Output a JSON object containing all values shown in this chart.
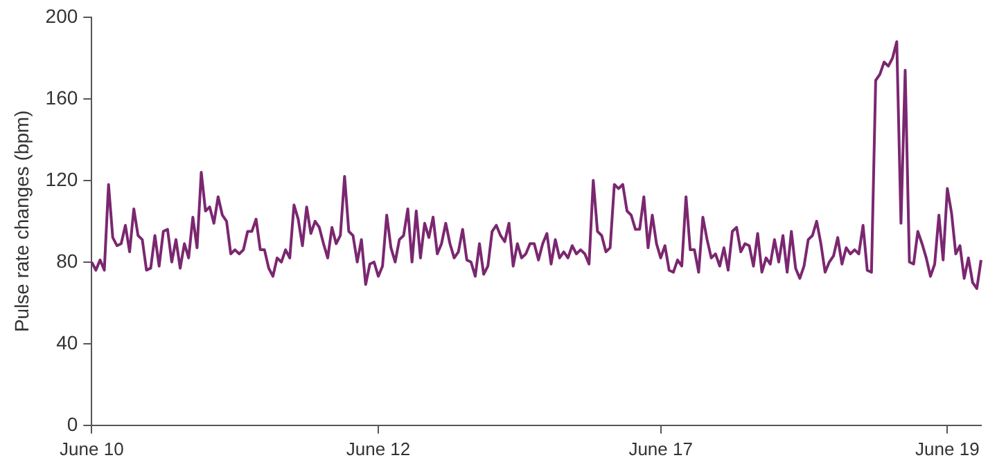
{
  "chart_data": {
    "type": "line",
    "ylabel": "Pulse rate changes (bpm)",
    "grid": false,
    "legend": false,
    "marker": "none",
    "line_style": "solid",
    "categories": [
      "June 10",
      null,
      null,
      null,
      null,
      null,
      null,
      null,
      null,
      null,
      null,
      null,
      null,
      null,
      null,
      null,
      null,
      null,
      null,
      null,
      null,
      null,
      null,
      null,
      null,
      null,
      null,
      null,
      null,
      null,
      null,
      null,
      null,
      null,
      null,
      null,
      null,
      null,
      null,
      null,
      null,
      null,
      null,
      null,
      null,
      null,
      null,
      null,
      null,
      null,
      null,
      null,
      null,
      null,
      null,
      null,
      null,
      null,
      null,
      null,
      null,
      null,
      null,
      null,
      null,
      null,
      null,
      null,
      "June 12",
      null,
      null,
      null,
      null,
      null,
      null,
      null,
      null,
      null,
      null,
      null,
      null,
      null,
      null,
      null,
      null,
      null,
      null,
      null,
      null,
      null,
      null,
      null,
      null,
      null,
      null,
      null,
      null,
      null,
      null,
      null,
      null,
      null,
      null,
      null,
      null,
      null,
      null,
      null,
      null,
      null,
      null,
      null,
      null,
      null,
      null,
      null,
      null,
      null,
      null,
      null,
      null,
      null,
      null,
      null,
      null,
      null,
      null,
      null,
      null,
      null,
      null,
      null,
      null,
      null,
      null,
      "June 17",
      null,
      null,
      null,
      null,
      null,
      null,
      null,
      null,
      null,
      null,
      null,
      null,
      null,
      null,
      null,
      null,
      null,
      null,
      null,
      null,
      null,
      null,
      null,
      null,
      null,
      null,
      null,
      null,
      null,
      null,
      null,
      null,
      null,
      null,
      null,
      null,
      null,
      null,
      null,
      null,
      null,
      null,
      null,
      null,
      null,
      null,
      null,
      null,
      null,
      null,
      null,
      null,
      null,
      null,
      null,
      null,
      null,
      null,
      null,
      null,
      null,
      null,
      null,
      null,
      null,
      null,
      null,
      "June 19",
      null,
      null,
      null,
      null,
      null,
      null,
      null,
      null
    ],
    "ylim": [
      0,
      200
    ],
    "yticks": [
      0,
      40,
      80,
      120,
      160,
      200
    ],
    "series": [
      {
        "color": "#7b2770",
        "values": [
          80,
          76,
          81,
          76,
          118,
          92,
          88,
          89,
          98,
          85,
          106,
          93,
          91,
          76,
          77,
          93,
          78,
          95,
          96,
          80,
          91,
          77,
          89,
          82,
          102,
          87,
          124,
          105,
          107,
          99,
          112,
          103,
          100,
          84,
          86,
          84,
          86,
          95,
          95,
          101,
          86,
          86,
          77,
          73,
          82,
          80,
          86,
          82,
          108,
          101,
          88,
          107,
          94,
          100,
          97,
          89,
          82,
          97,
          89,
          93,
          122,
          95,
          93,
          80,
          91,
          69,
          79,
          80,
          73,
          78,
          103,
          87,
          80,
          91,
          93,
          106,
          80,
          105,
          82,
          99,
          92,
          102,
          84,
          89,
          99,
          89,
          82,
          85,
          96,
          81,
          80,
          73,
          89,
          74,
          78,
          95,
          98,
          93,
          90,
          99,
          78,
          89,
          82,
          84,
          89,
          89,
          81,
          89,
          94,
          79,
          91,
          82,
          85,
          82,
          88,
          84,
          86,
          84,
          79,
          120,
          95,
          93,
          85,
          87,
          118,
          116,
          118,
          105,
          103,
          96,
          96,
          112,
          87,
          103,
          89,
          82,
          88,
          76,
          75,
          81,
          78,
          112,
          86,
          86,
          75,
          102,
          91,
          82,
          84,
          78,
          87,
          76,
          95,
          97,
          85,
          89,
          88,
          78,
          94,
          75,
          82,
          79,
          91,
          80,
          93,
          75,
          95,
          77,
          72,
          78,
          91,
          93,
          100,
          89,
          75,
          80,
          83,
          92,
          79,
          87,
          84,
          86,
          84,
          98,
          76,
          75,
          169,
          172,
          178,
          176,
          180,
          188,
          99,
          174,
          80,
          79,
          95,
          89,
          82,
          73,
          79,
          103,
          81,
          116,
          104,
          84,
          88,
          72,
          82,
          70,
          67,
          81
        ]
      }
    ]
  }
}
